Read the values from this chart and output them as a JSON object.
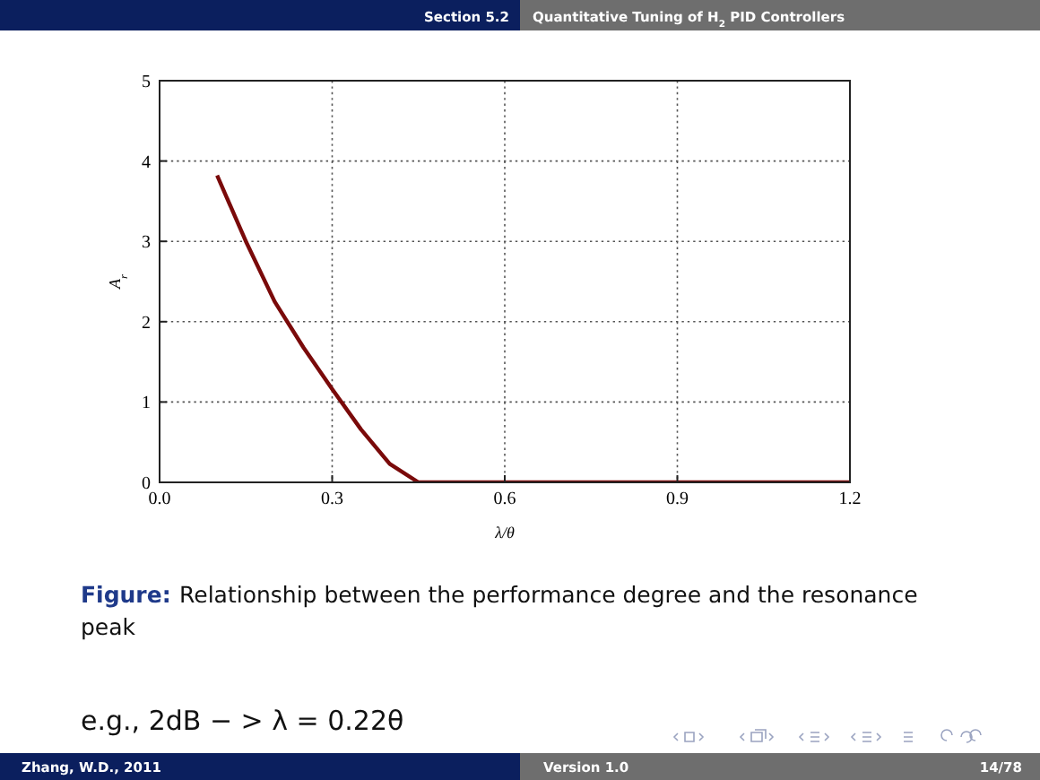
{
  "chart_data": {
    "type": "line",
    "xlabel": "λ/θ",
    "ylabel": "A$_{r}$",
    "x": [
      0.1,
      0.15,
      0.2,
      0.25,
      0.3,
      0.35,
      0.4,
      0.45,
      0.6,
      0.9,
      1.2
    ],
    "series": [
      {
        "color": "#7a0a0a",
        "values": [
          3.82,
          3.0,
          2.25,
          1.68,
          1.16,
          0.66,
          0.23,
          0,
          0,
          0,
          0
        ]
      }
    ],
    "xlim": [
      0,
      1.2
    ],
    "ylim": [
      0,
      5
    ],
    "xticks": [
      {
        "value": 0,
        "label": "0.0"
      },
      {
        "value": 0.3,
        "label": "0.3"
      },
      {
        "value": 0.6,
        "label": "0.6"
      },
      {
        "value": 0.9,
        "label": "0.9"
      },
      {
        "value": 1.2,
        "label": "1.2"
      }
    ],
    "yticks": [
      0,
      1,
      2,
      3,
      4,
      5
    ],
    "grid": true,
    "marker": "none",
    "line_style": "solid",
    "annotations": [
      "Section 5.2",
      "Quantitative Tuning of H$_{2}$ PID Controllers",
      "Figure:",
      "Relationship between the performance degree and the resonance",
      "peak",
      "e.g., 2dB − > λ = 0.22θ",
      "Zhang, W.D., 2011",
      "Version 1.0",
      "14/78"
    ]
  }
}
